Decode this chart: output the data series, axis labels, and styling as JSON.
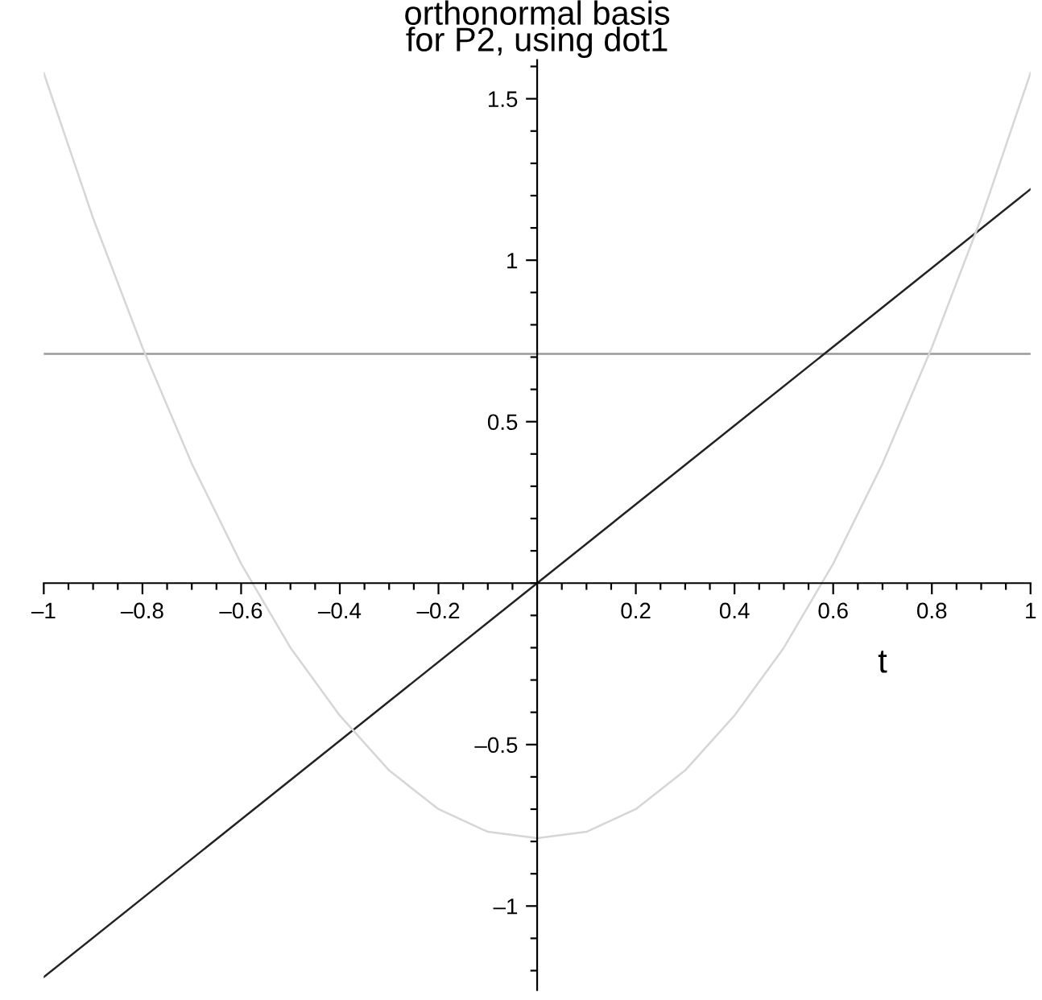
{
  "chart_data": {
    "type": "line",
    "title": "orthonormal basis\nfor P2, using dot1",
    "xlabel": "t",
    "series": [
      {
        "color": "#999999",
        "x": [
          -1,
          1
        ],
        "values": [
          0.71,
          0.71
        ]
      },
      {
        "color": "#222222",
        "x": [
          -1,
          1
        ],
        "values": [
          -1.22,
          1.22
        ]
      },
      {
        "color": "#d6d6d6",
        "x": [
          -1,
          -0.9,
          -0.8,
          -0.7,
          -0.6,
          -0.5,
          -0.4,
          -0.3,
          -0.2,
          -0.1,
          0,
          0.1,
          0.2,
          0.3,
          0.4,
          0.5,
          0.6,
          0.7,
          0.8,
          0.9,
          1
        ],
        "values": [
          1.58,
          1.13,
          0.73,
          0.37,
          0.06,
          -0.2,
          -0.41,
          -0.58,
          -0.7,
          -0.77,
          -0.79,
          -0.77,
          -0.7,
          -0.58,
          -0.41,
          -0.2,
          0.06,
          0.37,
          0.73,
          1.13,
          1.58
        ]
      }
    ],
    "xlim": [
      -1,
      1
    ],
    "ylim": [
      -1.26,
      1.62
    ],
    "xticks": [
      {
        "value": -1,
        "label": "–1"
      },
      {
        "value": -0.8,
        "label": "–0.8"
      },
      {
        "value": -0.6,
        "label": "–0.6"
      },
      {
        "value": -0.4,
        "label": "–0.4"
      },
      {
        "value": -0.2,
        "label": "–0.2"
      },
      0.2,
      0.4,
      0.6,
      0.8,
      1
    ],
    "yticks": [
      {
        "value": -1,
        "label": "–1"
      },
      {
        "value": -0.5,
        "label": "–0.5"
      },
      0.5,
      1,
      1.5
    ],
    "grid": false,
    "legend": false,
    "marker": "none",
    "line_style": "solid"
  }
}
